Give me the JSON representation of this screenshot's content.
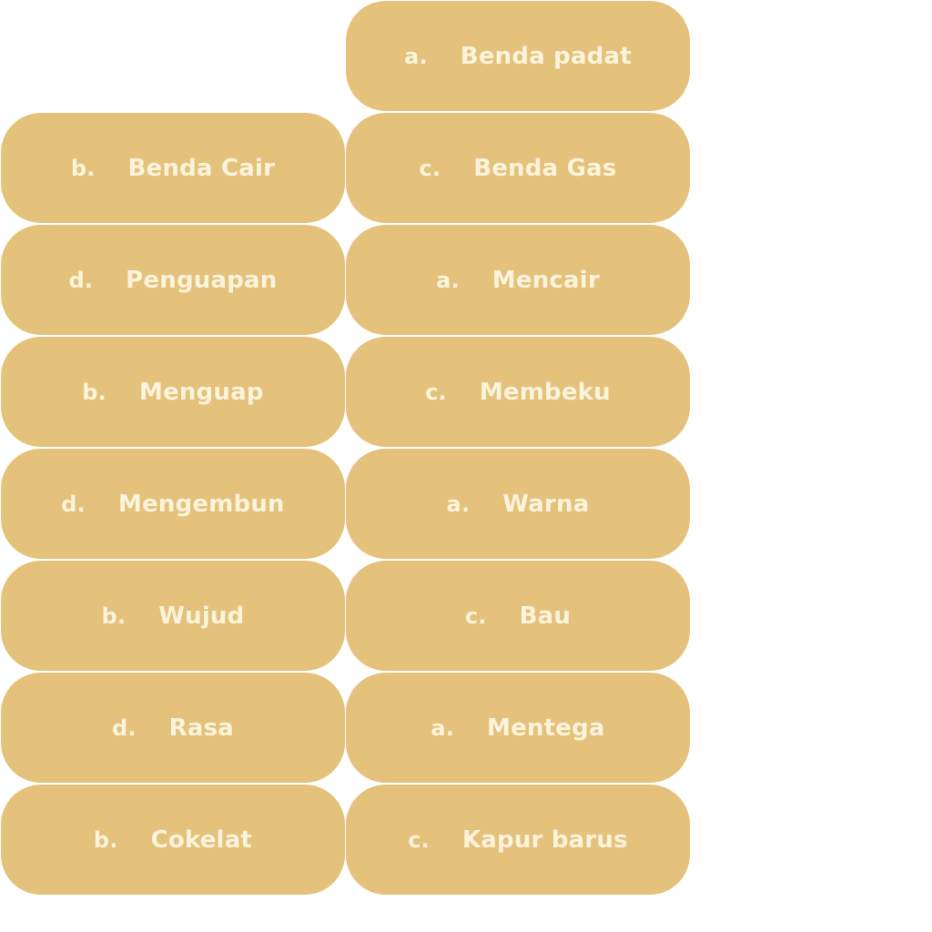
{
  "colors": {
    "tile_background": "#e4c27b",
    "tile_text": "#fbf3dc",
    "page_background": "#ffffff"
  },
  "left_column": [
    {
      "letter": "b.",
      "text": "Benda Cair"
    },
    {
      "letter": "d.",
      "text": "Penguapan"
    },
    {
      "letter": "b.",
      "text": "Menguap"
    },
    {
      "letter": "d.",
      "text": "Mengembun"
    },
    {
      "letter": "b.",
      "text": "Wujud"
    },
    {
      "letter": "d.",
      "text": "Rasa"
    },
    {
      "letter": "b.",
      "text": "Cokelat"
    }
  ],
  "right_column": [
    {
      "letter": "a.",
      "text": "Benda padat"
    },
    {
      "letter": "c.",
      "text": "Benda Gas"
    },
    {
      "letter": "a.",
      "text": "Mencair"
    },
    {
      "letter": "c.",
      "text": "Membeku"
    },
    {
      "letter": "a.",
      "text": "Warna"
    },
    {
      "letter": "c.",
      "text": "Bau"
    },
    {
      "letter": "a.",
      "text": "Mentega"
    },
    {
      "letter": "c.",
      "text": "Kapur barus"
    }
  ]
}
